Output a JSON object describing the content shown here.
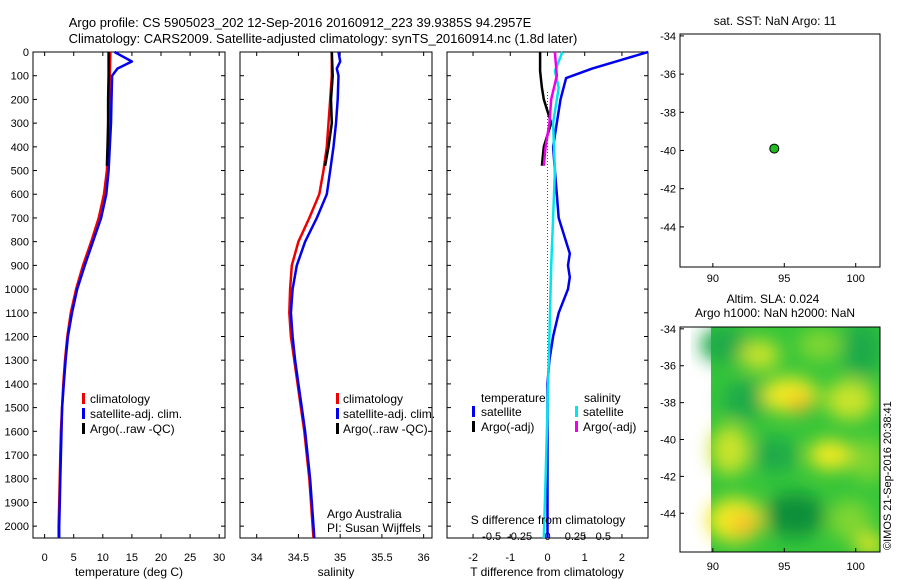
{
  "header": {
    "line1": "Argo profile: CS 5905023_202 12-Sep-2016 20160912_223 39.9385S 94.2957E",
    "line2": "Climatology: CARS2009. Satellite-adjusted climatology: synTS_20160914.nc (1.8d later)"
  },
  "credit": {
    "line1": "Argo Australia",
    "line2": "PI: Susan Wijffels",
    "stamp": "©IMOS 21-Sep-2016 20:38:41"
  },
  "colors": {
    "climatology": "#ee0000",
    "satellite": "#0000ee",
    "argo": "#000000",
    "sal_satellite": "#00e5ee",
    "sal_argo": "#ee00ee",
    "marker_fill": "#22bb22"
  },
  "chart_data": [
    {
      "id": "temperature",
      "type": "line",
      "xlabel": "temperature (deg C)",
      "xlim": [
        -2,
        31
      ],
      "xticks": [
        0,
        5,
        10,
        15,
        20,
        25,
        30
      ],
      "xtick_labels": [
        "0",
        "5",
        "10",
        "15",
        "20",
        "25",
        "30"
      ],
      "ylim": [
        0,
        2050
      ],
      "ylim_reversed": true,
      "yticks": [
        0,
        100,
        200,
        300,
        400,
        500,
        600,
        700,
        800,
        900,
        1000,
        1100,
        1200,
        1300,
        1400,
        1500,
        1600,
        1700,
        1800,
        1900,
        2000
      ],
      "legend": {
        "placement": "lower-right",
        "entries": [
          "climatology",
          "satellite-adj. clim.",
          "Argo(..raw -QC)"
        ]
      },
      "series": [
        {
          "name": "climatology",
          "color_key": "climatology",
          "points": [
            [
              11.3,
              0
            ],
            [
              11.2,
              100
            ],
            [
              11.1,
              200
            ],
            [
              11.0,
              300
            ],
            [
              10.9,
              400
            ],
            [
              10.7,
              500
            ],
            [
              10.2,
              600
            ],
            [
              9.3,
              700
            ],
            [
              8.0,
              800
            ],
            [
              6.6,
              900
            ],
            [
              5.4,
              1000
            ],
            [
              4.5,
              1100
            ],
            [
              3.9,
              1200
            ],
            [
              3.5,
              1300
            ],
            [
              3.2,
              1400
            ],
            [
              3.0,
              1500
            ],
            [
              2.8,
              1600
            ],
            [
              2.7,
              1700
            ],
            [
              2.6,
              1800
            ],
            [
              2.5,
              1900
            ],
            [
              2.4,
              2000
            ],
            [
              2.4,
              2050
            ]
          ]
        },
        {
          "name": "satellite-adj. clim.",
          "color_key": "satellite",
          "points": [
            [
              12.0,
              0
            ],
            [
              15.0,
              40
            ],
            [
              12.5,
              70
            ],
            [
              11.6,
              100
            ],
            [
              11.5,
              200
            ],
            [
              11.4,
              300
            ],
            [
              11.2,
              400
            ],
            [
              11.0,
              500
            ],
            [
              10.6,
              600
            ],
            [
              9.7,
              700
            ],
            [
              8.3,
              800
            ],
            [
              6.9,
              900
            ],
            [
              5.6,
              1000
            ],
            [
              4.7,
              1100
            ],
            [
              4.0,
              1200
            ],
            [
              3.6,
              1300
            ],
            [
              3.3,
              1400
            ],
            [
              3.0,
              1500
            ],
            [
              2.9,
              1600
            ],
            [
              2.8,
              1700
            ],
            [
              2.7,
              1800
            ],
            [
              2.6,
              1900
            ],
            [
              2.5,
              2000
            ],
            [
              2.5,
              2050
            ]
          ]
        },
        {
          "name": "Argo(..raw -QC)",
          "color_key": "argo",
          "points": [
            [
              11.0,
              0
            ],
            [
              11.0,
              100
            ],
            [
              10.9,
              200
            ],
            [
              10.9,
              300
            ],
            [
              10.8,
              400
            ],
            [
              10.7,
              480
            ]
          ]
        }
      ]
    },
    {
      "id": "salinity",
      "type": "line",
      "xlabel": "salinity",
      "xlim": [
        33.8,
        36.1
      ],
      "xticks": [
        34,
        34.5,
        35,
        35.5,
        36
      ],
      "xtick_labels": [
        "34",
        "34.5",
        "35",
        "35.5",
        "36"
      ],
      "ylim": [
        0,
        2050
      ],
      "ylim_reversed": true,
      "legend": {
        "placement": "lower-right",
        "entries": [
          "climatology",
          "satellite-adj. clim.",
          "Argo(..raw -QC)"
        ]
      },
      "series": [
        {
          "name": "climatology",
          "color_key": "climatology",
          "points": [
            [
              34.9,
              0
            ],
            [
              34.9,
              100
            ],
            [
              34.88,
              200
            ],
            [
              34.86,
              300
            ],
            [
              34.84,
              400
            ],
            [
              34.8,
              500
            ],
            [
              34.75,
              600
            ],
            [
              34.63,
              700
            ],
            [
              34.5,
              800
            ],
            [
              34.42,
              900
            ],
            [
              34.4,
              1000
            ],
            [
              34.39,
              1100
            ],
            [
              34.41,
              1200
            ],
            [
              34.45,
              1300
            ],
            [
              34.49,
              1400
            ],
            [
              34.53,
              1500
            ],
            [
              34.57,
              1600
            ],
            [
              34.6,
              1700
            ],
            [
              34.63,
              1800
            ],
            [
              34.65,
              1900
            ],
            [
              34.67,
              2000
            ],
            [
              34.68,
              2050
            ]
          ]
        },
        {
          "name": "satellite-adj. clim.",
          "color_key": "satellite",
          "points": [
            [
              34.98,
              0
            ],
            [
              35.0,
              40
            ],
            [
              34.96,
              70
            ],
            [
              34.98,
              100
            ],
            [
              34.97,
              200
            ],
            [
              34.95,
              300
            ],
            [
              34.92,
              400
            ],
            [
              34.88,
              500
            ],
            [
              34.84,
              600
            ],
            [
              34.72,
              700
            ],
            [
              34.58,
              800
            ],
            [
              34.48,
              900
            ],
            [
              34.43,
              1000
            ],
            [
              34.41,
              1100
            ],
            [
              34.43,
              1200
            ],
            [
              34.46,
              1300
            ],
            [
              34.5,
              1400
            ],
            [
              34.54,
              1500
            ],
            [
              34.58,
              1600
            ],
            [
              34.61,
              1700
            ],
            [
              34.64,
              1800
            ],
            [
              34.66,
              1900
            ],
            [
              34.68,
              2000
            ],
            [
              34.69,
              2050
            ]
          ]
        },
        {
          "name": "Argo(..raw -QC)",
          "color_key": "argo",
          "points": [
            [
              34.9,
              0
            ],
            [
              34.91,
              100
            ],
            [
              34.89,
              200
            ],
            [
              34.9,
              300
            ],
            [
              34.86,
              400
            ],
            [
              34.82,
              480
            ]
          ]
        }
      ]
    },
    {
      "id": "difference",
      "type": "line",
      "xlabel": "T difference from climatology",
      "xlabel_top": "S difference from climatology",
      "xlim": [
        -2.7,
        2.7
      ],
      "xticks": [
        -2,
        -1,
        0,
        1,
        2
      ],
      "xtick_labels": [
        "-2",
        "-1",
        "0",
        "1",
        "2"
      ],
      "sticks": [
        -1.5,
        -0.75,
        0.75,
        1.5
      ],
      "stick_labels": [
        "-0.5",
        "-0.25",
        "0.25",
        "0.5"
      ],
      "ylim": [
        0,
        2050
      ],
      "ylim_reversed": true,
      "legend": {
        "placement": "lower-center",
        "temperature_header": "temperature",
        "salinity_header": "salinity",
        "entries": [
          "satellite",
          "Argo(-adj)",
          "satellite",
          "Argo(-adj)"
        ]
      },
      "series": [
        {
          "name": "satellite",
          "group": "temperature",
          "color_key": "satellite",
          "points": [
            [
              2.7,
              0
            ],
            [
              1.2,
              70
            ],
            [
              0.5,
              110
            ],
            [
              0.35,
              200
            ],
            [
              0.25,
              300
            ],
            [
              0.15,
              400
            ],
            [
              0.2,
              500
            ],
            [
              0.25,
              600
            ],
            [
              0.3,
              700
            ],
            [
              0.5,
              800
            ],
            [
              0.6,
              850
            ],
            [
              0.55,
              900
            ],
            [
              0.6,
              950
            ],
            [
              0.55,
              1000
            ],
            [
              0.3,
              1100
            ],
            [
              0.15,
              1200
            ],
            [
              0.05,
              1300
            ],
            [
              0,
              1400
            ],
            [
              0,
              2050
            ]
          ]
        },
        {
          "name": "Argo(-adj)",
          "group": "temperature",
          "color_key": "argo",
          "points": [
            [
              -0.2,
              0
            ],
            [
              -0.2,
              80
            ],
            [
              -0.15,
              150
            ],
            [
              -0.1,
              200
            ],
            [
              0.1,
              300
            ],
            [
              -0.1,
              400
            ],
            [
              -0.15,
              480
            ]
          ]
        },
        {
          "name": "satellite",
          "group": "salinity",
          "color_key": "sal_satellite",
          "points": [
            [
              0.4,
              0
            ],
            [
              0.2,
              80
            ],
            [
              0.3,
              150
            ],
            [
              0.15,
              300
            ],
            [
              0.2,
              500
            ],
            [
              0.15,
              700
            ],
            [
              0.1,
              900
            ],
            [
              0.05,
              1200
            ],
            [
              0,
              1500
            ],
            [
              -0.05,
              1800
            ],
            [
              -0.1,
              2050
            ]
          ]
        },
        {
          "name": "Argo(-adj)",
          "group": "salinity",
          "color_key": "sal_argo",
          "points": [
            [
              0.2,
              0
            ],
            [
              0.25,
              100
            ],
            [
              0.1,
              200
            ],
            [
              0.05,
              300
            ],
            [
              -0.05,
              400
            ],
            [
              -0.1,
              480
            ]
          ]
        }
      ]
    },
    {
      "id": "location",
      "type": "scatter",
      "title": "sat. SST: NaN Argo: 11",
      "xlim": [
        87.7,
        101.7
      ],
      "ylim": [
        -46.1,
        -33.9
      ],
      "xticks": [
        90,
        95,
        100
      ],
      "yticks": [
        -34,
        -36,
        -38,
        -40,
        -42,
        -44
      ],
      "points": [
        [
          94.3,
          -39.9
        ]
      ]
    },
    {
      "id": "sla_map",
      "type": "heatmap",
      "title": "Altim. SLA: 0.024",
      "subtitle": "Argo h1000: NaN h2000: NaN",
      "xlim": [
        87.7,
        101.7
      ],
      "ylim": [
        -46.1,
        -33.9
      ],
      "xticks": [
        90,
        95,
        100
      ],
      "yticks": [
        -34,
        -36,
        -38,
        -40,
        -42,
        -44
      ],
      "data_extent_x": [
        89.9,
        101.7
      ],
      "colormap": [
        "#0e8f3a",
        "#1faa48",
        "#36c53a",
        "#7fd630",
        "#c9e32a",
        "#f2ea23",
        "#f5b52a",
        "#ef7a2d"
      ]
    }
  ]
}
